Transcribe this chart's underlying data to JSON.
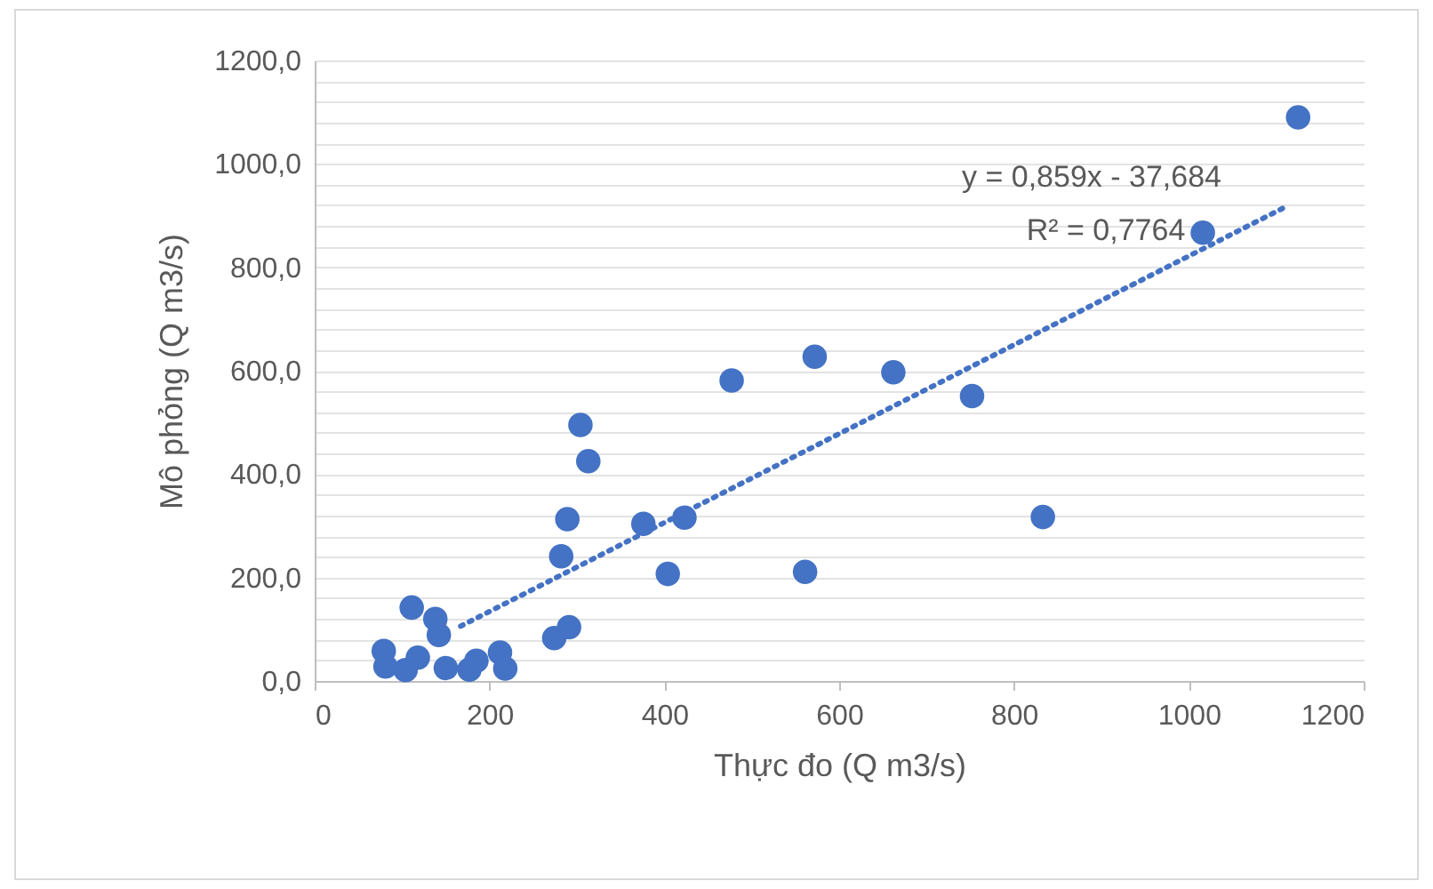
{
  "chart_data": {
    "type": "scatter",
    "xlabel": "Thực đo (Q m3/s)",
    "ylabel": "Mô phỏng (Q m3/s)",
    "annotations": [
      "y = 0,859x - 37,684",
      "R² = 0,7764"
    ],
    "xlim": [
      0,
      1200
    ],
    "xticks": [
      0,
      200,
      400,
      600,
      800,
      1000,
      1200
    ],
    "ylim": [
      0,
      1200
    ],
    "yticks": [
      {
        "value": 0,
        "label": "0,0"
      },
      {
        "value": 40,
        "label": null
      },
      {
        "value": 80,
        "label": null
      },
      {
        "value": 120,
        "label": null
      },
      {
        "value": 160,
        "label": null
      },
      {
        "value": 200,
        "label": "200,0"
      },
      {
        "value": 240,
        "label": null
      },
      {
        "value": 280,
        "label": null
      },
      {
        "value": 320,
        "label": null
      },
      {
        "value": 360,
        "label": null
      },
      {
        "value": 400,
        "label": "400,0"
      },
      {
        "value": 440,
        "label": null
      },
      {
        "value": 480,
        "label": null
      },
      {
        "value": 520,
        "label": null
      },
      {
        "value": 560,
        "label": null
      },
      {
        "value": 600,
        "label": "600,0"
      },
      {
        "value": 640,
        "label": null
      },
      {
        "value": 680,
        "label": null
      },
      {
        "value": 720,
        "label": null
      },
      {
        "value": 760,
        "label": null
      },
      {
        "value": 800,
        "label": "800,0"
      },
      {
        "value": 840,
        "label": null
      },
      {
        "value": 880,
        "label": null
      },
      {
        "value": 920,
        "label": null
      },
      {
        "value": 960,
        "label": null
      },
      {
        "value": 1000,
        "label": "1000,0"
      },
      {
        "value": 1040,
        "label": null
      },
      {
        "value": 1080,
        "label": null
      },
      {
        "value": 1120,
        "label": null
      },
      {
        "value": 1160,
        "label": null
      },
      {
        "value": 1200,
        "label": "1200,0"
      }
    ],
    "grid": "y",
    "series": [
      {
        "type": "scatter",
        "color": "#4472c4",
        "marker": "circle",
        "x": [
          79,
          81,
          104,
          118,
          111,
          138,
          142,
          150,
          177,
          185,
          212,
          218,
          274,
          291,
          282,
          289,
          376,
          304,
          313,
          423,
          404,
          477,
          572,
          561,
          662,
          752,
          833,
          1125,
          1016
        ],
        "values": [
          58,
          28,
          21,
          45,
          142,
          120,
          89,
          25,
          22,
          39,
          55,
          24,
          83,
          104,
          241,
          313,
          304,
          495,
          425,
          316,
          207,
          581,
          627,
          211,
          597,
          551,
          317,
          1090,
          867
        ]
      },
      {
        "type": "line",
        "color": "#4472c4",
        "line_style": "dotted",
        "marker": "none",
        "x": [
          167,
          1112
        ],
        "values": [
          106,
          918
        ]
      }
    ]
  }
}
